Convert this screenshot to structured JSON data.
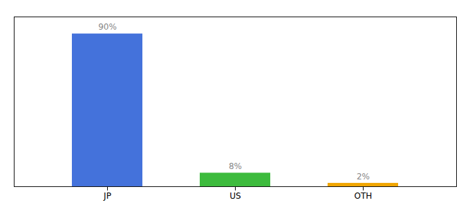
{
  "chart_data": {
    "type": "bar",
    "categories": [
      "JP",
      "US",
      "OTH"
    ],
    "values": [
      90,
      8,
      2
    ],
    "value_labels": [
      "90%",
      "8%",
      "2%"
    ],
    "colors": [
      "#4472db",
      "#3dbb3d",
      "#f0a500"
    ],
    "ylim": [
      0,
      100
    ],
    "data_labels": true,
    "tick_labels": "x",
    "grid": false
  }
}
